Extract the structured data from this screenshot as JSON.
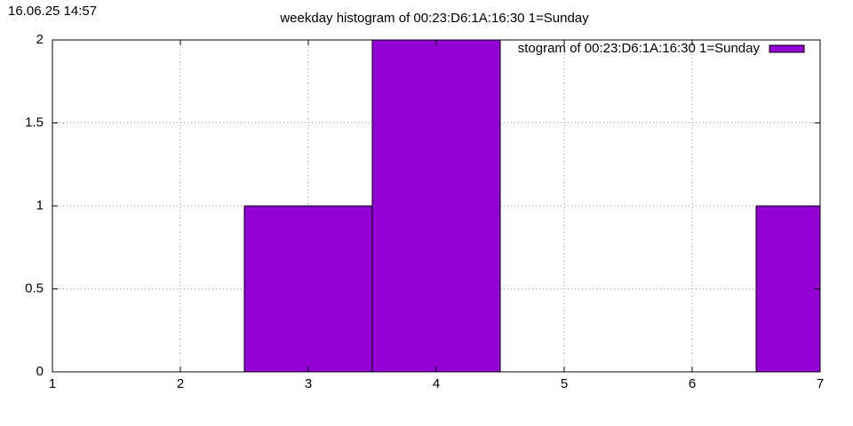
{
  "timestamp": "16.06.25 14:57",
  "chart_data": {
    "type": "bar",
    "title": "weekday histogram of 00:23:D6:1A:16:30 1=Sunday",
    "x": [
      3,
      4,
      7
    ],
    "series": [
      {
        "name": "stogram of 00:23:D6:1A:16:30 1=Sunday",
        "color": "#9400d3",
        "values": [
          1,
          2,
          1
        ]
      }
    ],
    "xlim": [
      1,
      7
    ],
    "xticks": [
      1,
      2,
      3,
      4,
      5,
      6,
      7
    ],
    "ylim": [
      0,
      2
    ],
    "yticks": [
      0,
      0.5,
      1,
      1.5,
      2
    ],
    "grid": true,
    "legend": "top-right"
  }
}
